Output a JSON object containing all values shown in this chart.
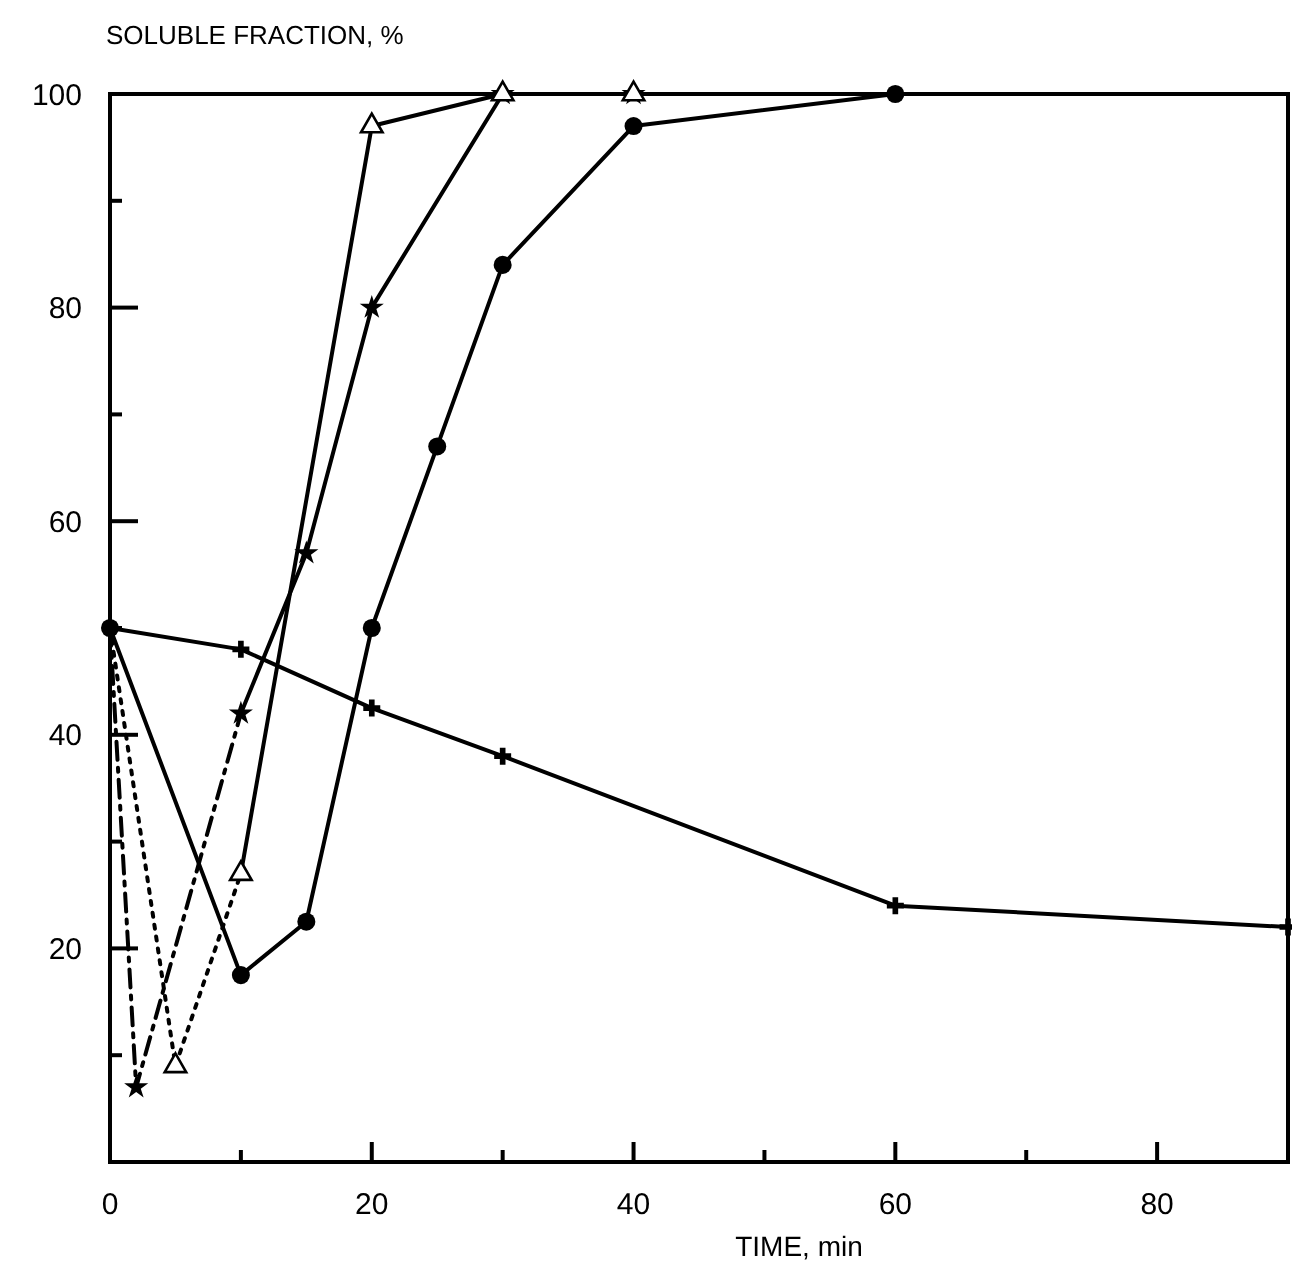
{
  "chart_data": {
    "type": "line",
    "ylabel": "SOLUBLE FRACTION, %",
    "xlabel": "TIME, min",
    "xlim": [
      0,
      90
    ],
    "ylim": [
      0,
      100
    ],
    "xticks": [
      0,
      {
        "value": 10,
        "label": null
      },
      20,
      {
        "value": 30,
        "label": null
      },
      40,
      {
        "value": 50,
        "label": null
      },
      60,
      {
        "value": 70,
        "label": null
      },
      80
    ],
    "yticks": [
      {
        "value": 10,
        "label": null
      },
      20,
      {
        "value": 30,
        "label": null
      },
      40,
      {
        "value": 50,
        "label": null
      },
      60,
      {
        "value": 70,
        "label": null
      },
      80,
      {
        "value": 90,
        "label": null
      },
      100
    ],
    "grid": false,
    "series": [
      {
        "color": "#000000",
        "marker": "circle",
        "line_style": "solid",
        "x": [
          0,
          10,
          15,
          20,
          25,
          30,
          40,
          60
        ],
        "values": [
          50,
          17.5,
          22.5,
          50,
          67,
          84,
          97,
          100
        ]
      },
      {
        "color": "#000000",
        "marker": "star",
        "line_style": "dashed",
        "x": [
          0,
          2,
          10
        ],
        "values": [
          50,
          7,
          42
        ]
      },
      {
        "color": "#000000",
        "marker": "star",
        "line_style": "solid",
        "x": [
          10,
          15,
          20,
          30,
          40
        ],
        "values": [
          42,
          57,
          80,
          100,
          100
        ]
      },
      {
        "color": "#000000",
        "marker": "triangle",
        "line_style": "dotted",
        "x": [
          0,
          5,
          10
        ],
        "values": [
          50,
          9,
          27
        ]
      },
      {
        "color": "#000000",
        "marker": "triangle",
        "line_style": "solid",
        "x": [
          10,
          20,
          30,
          40
        ],
        "values": [
          27,
          97,
          100,
          100
        ]
      },
      {
        "color": "#000000",
        "marker": "cross",
        "line_style": "solid",
        "x": [
          0,
          10,
          20,
          30,
          60,
          90
        ],
        "values": [
          50,
          48,
          42.5,
          38,
          24,
          22
        ]
      }
    ]
  }
}
